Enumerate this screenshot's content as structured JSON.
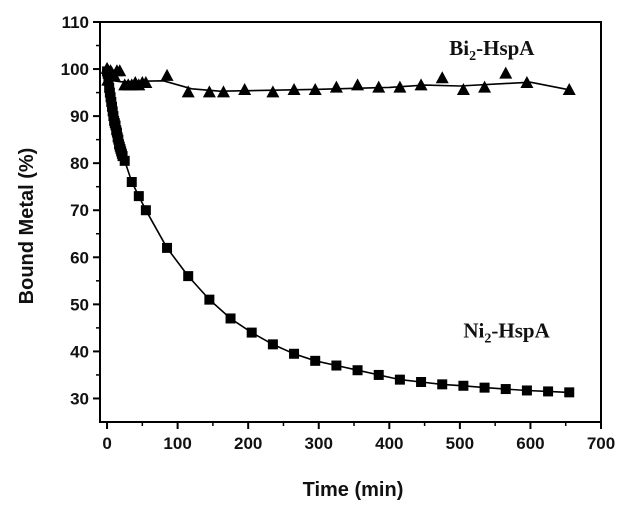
{
  "chart_data": {
    "type": "scatter",
    "xlabel": "Time (min)",
    "ylabel": "Bound Metal (%)",
    "xlim": [
      -10,
      700
    ],
    "ylim": [
      25,
      110
    ],
    "xticks": [
      0,
      100,
      200,
      300,
      400,
      500,
      600,
      700
    ],
    "yticks": [
      30,
      40,
      50,
      60,
      70,
      80,
      90,
      100,
      110
    ],
    "grid": false,
    "legend": "none",
    "series": [
      {
        "name": "Bi2-HspA",
        "name_parts": {
          "base": "Bi",
          "sub": "2",
          "suffix": "-HspA"
        },
        "label_anchor": [
          485,
          103
        ],
        "marker": "triangle",
        "color": "#000000",
        "x": [
          0,
          1,
          2,
          3,
          5,
          7,
          10,
          14,
          18,
          25,
          30,
          35,
          40,
          45,
          50,
          55,
          85,
          115,
          145,
          165,
          195,
          235,
          265,
          295,
          325,
          355,
          385,
          415,
          445,
          475,
          505,
          535,
          565,
          595,
          655
        ],
        "y": [
          100,
          97.5,
          99.5,
          99,
          99.5,
          99,
          98.5,
          99.5,
          99.5,
          96.5,
          96.5,
          96.5,
          97,
          96.5,
          97,
          97,
          98.5,
          95,
          95,
          95,
          95.5,
          95,
          95.5,
          95.5,
          96,
          96.5,
          96,
          96,
          96.5,
          98,
          95.5,
          96,
          99,
          97,
          95.5
        ],
        "fit": {
          "x": [
            0,
            5,
            10,
            20,
            40,
            80,
            120,
            160,
            200,
            300,
            400,
            450,
            500,
            550,
            600,
            655
          ],
          "y": [
            99,
            98,
            97.5,
            97.3,
            97.4,
            97.5,
            95.8,
            95.3,
            95.4,
            95.7,
            96.1,
            96.6,
            96.4,
            96.8,
            97.2,
            95.6
          ]
        }
      },
      {
        "name": "Ni2-HspA",
        "name_parts": {
          "base": "Ni",
          "sub": "2",
          "suffix": "-HspA"
        },
        "label_anchor": [
          505,
          43
        ],
        "marker": "square",
        "color": "#000000",
        "x": [
          0,
          1,
          2,
          3,
          4,
          5,
          6,
          7,
          8,
          9,
          10,
          11,
          12,
          13,
          14,
          15,
          16,
          17,
          18,
          19,
          20,
          21,
          22,
          25,
          35,
          45,
          55,
          85,
          115,
          145,
          175,
          205,
          235,
          265,
          295,
          325,
          355,
          385,
          415,
          445,
          475,
          505,
          535,
          565,
          595,
          625,
          655
        ],
        "y": [
          99.5,
          99,
          97.5,
          96,
          95,
          94,
          93,
          92,
          91,
          90,
          89,
          88.5,
          88,
          87,
          86.5,
          85.5,
          85,
          84,
          83.5,
          83,
          82.5,
          82,
          81.5,
          80.5,
          76,
          73,
          70,
          62,
          56,
          51,
          47,
          44,
          41.5,
          39.5,
          38,
          37,
          36,
          35,
          34,
          33.5,
          33,
          32.7,
          32.3,
          32,
          31.7,
          31.5,
          31.3
        ]
      }
    ]
  }
}
